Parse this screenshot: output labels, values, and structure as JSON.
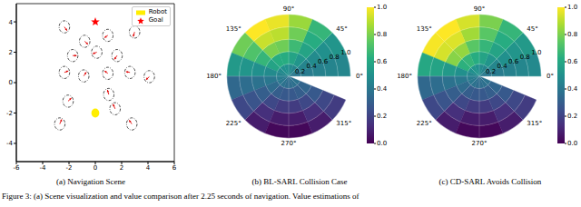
{
  "chart_data": [
    {
      "type": "scatter",
      "title": "(a) Navigation Scene",
      "xlim": [
        -6,
        6
      ],
      "xticks": [
        -6,
        -4,
        -2,
        0,
        2,
        4,
        6
      ],
      "ylim": [
        -5.2,
        5.2
      ],
      "yticks": [
        -4,
        -2,
        0,
        2,
        4
      ],
      "legend": "upper right",
      "series": [
        {
          "name": "Robot",
          "color": "#ffee00",
          "marker": "circle",
          "x": [
            0
          ],
          "y": [
            -2
          ],
          "radius": [
            0.3
          ]
        },
        {
          "name": "Goal",
          "color": "#ff0000",
          "marker": "star",
          "x": [
            0
          ],
          "y": [
            4
          ]
        },
        {
          "color": "#000000",
          "marker": "ring",
          "line_style": "dashdot",
          "x": [
            -2.35,
            0.95,
            2.98,
            -0.81,
            -1.72,
            0.11,
            1.65,
            -2.35,
            -0.88,
            0.95,
            2.63,
            4.1,
            1.02,
            -2.07,
            -2.7,
            2.77,
            1.5
          ],
          "y": [
            3.67,
            3.11,
            3.33,
            2.72,
            1.78,
            2.0,
            1.78,
            0.67,
            0.44,
            0.61,
            0.67,
            0.39,
            -0.78,
            -1.22,
            -2.72,
            -2.72,
            -1.72
          ],
          "radius": [
            0.4,
            0.4,
            0.4,
            0.4,
            0.4,
            0.4,
            0.4,
            0.4,
            0.4,
            0.4,
            0.4,
            0.4,
            0.4,
            0.4,
            0.4,
            0.4,
            0.4
          ],
          "vx": [
            0.2,
            -0.25,
            -0.1,
            0.25,
            0.3,
            -0.3,
            -0.2,
            0.3,
            0.2,
            -0.25,
            -0.3,
            -0.25,
            -0.1,
            0.25,
            0.15,
            -0.2,
            -0.15
          ],
          "vy": [
            -0.25,
            -0.15,
            -0.3,
            -0.2,
            0.0,
            -0.1,
            -0.25,
            0.1,
            0.25,
            0.15,
            0.05,
            -0.2,
            0.3,
            0.2,
            0.3,
            0.25,
            0.3
          ]
        }
      ]
    },
    {
      "type": "polar_heatmap",
      "title": "(b) BL-SARL Collision Case",
      "theta_bins": [
        0,
        22.5,
        45,
        67.5,
        90,
        112.5,
        135,
        157.5,
        180,
        202.5,
        225,
        247.5,
        270,
        292.5,
        315,
        337.5
      ],
      "r_bins": [
        0,
        0.2,
        0.4,
        0.6,
        0.8,
        1
      ],
      "rlim": [
        0,
        1
      ],
      "rticks": [
        0.2,
        0.4,
        0.6,
        0.8,
        {
          "value": 1,
          "label": "1.0"
        }
      ],
      "thetaticks": [
        {
          "value": 0,
          "label": "0°"
        },
        {
          "value": 45,
          "label": "45°"
        },
        {
          "value": 90,
          "label": "90°"
        },
        {
          "value": 135,
          "label": "135°"
        },
        {
          "value": 180,
          "label": "180°"
        },
        {
          "value": 225,
          "label": "225°"
        },
        {
          "value": 270,
          "label": "270°"
        },
        {
          "value": 315,
          "label": "315°"
        }
      ],
      "values": [
        [
          0.4,
          0.42,
          0.45,
          0.48,
          0.5,
          0.5,
          0.48,
          0.45,
          0.42,
          0.4,
          0.38,
          0.36,
          0.36,
          0.37,
          0.38
        ],
        [
          0.42,
          0.45,
          0.52,
          0.58,
          0.62,
          0.62,
          0.58,
          0.48,
          0.4,
          0.35,
          0.3,
          0.28,
          0.28,
          0.3,
          0.33
        ],
        [
          0.44,
          0.48,
          0.58,
          0.68,
          0.78,
          0.8,
          0.66,
          0.5,
          0.38,
          0.3,
          0.22,
          0.18,
          0.18,
          0.22,
          0.28
        ],
        [
          0.45,
          0.5,
          0.62,
          0.78,
          0.9,
          0.92,
          0.72,
          0.52,
          0.36,
          0.26,
          0.14,
          0.08,
          0.08,
          0.14,
          0.22
        ],
        [
          0.46,
          0.52,
          0.66,
          0.85,
          0.97,
          1.0,
          0.78,
          0.54,
          0.34,
          0.22,
          0.08,
          0.02,
          0.02,
          0.08,
          0.18
        ]
      ],
      "colorbar_lim": [
        0,
        1
      ],
      "colorbar_ticks": [
        {
          "value": 0,
          "label": "0.0"
        },
        0.2,
        0.4,
        0.6,
        0.8,
        {
          "value": 1,
          "label": "1.0"
        }
      ]
    },
    {
      "type": "polar_heatmap",
      "title": "(c) CD-SARL Avoids Collision",
      "theta_bins": [
        0,
        22.5,
        45,
        67.5,
        90,
        112.5,
        135,
        157.5,
        180,
        202.5,
        225,
        247.5,
        270,
        292.5,
        315,
        337.5
      ],
      "r_bins": [
        0,
        0.2,
        0.4,
        0.6,
        0.8,
        1
      ],
      "rlim": [
        0,
        1
      ],
      "rticks": [
        0.2,
        0.4,
        0.6,
        0.8,
        {
          "value": 1,
          "label": "1.0"
        }
      ],
      "thetaticks": [
        {
          "value": 0,
          "label": "0°"
        },
        {
          "value": 45,
          "label": "45°"
        },
        {
          "value": 90,
          "label": "90°"
        },
        {
          "value": 135,
          "label": "135°"
        },
        {
          "value": 180,
          "label": "180°"
        },
        {
          "value": 225,
          "label": "225°"
        },
        {
          "value": 270,
          "label": "270°"
        },
        {
          "value": 315,
          "label": "315°"
        }
      ],
      "values": [
        [
          0.4,
          0.42,
          0.45,
          0.48,
          0.5,
          0.52,
          0.5,
          0.46,
          0.42,
          0.4,
          0.38,
          0.36,
          0.36,
          0.37,
          0.38
        ],
        [
          0.42,
          0.46,
          0.52,
          0.58,
          0.62,
          0.66,
          0.64,
          0.5,
          0.4,
          0.35,
          0.3,
          0.28,
          0.28,
          0.3,
          0.33
        ],
        [
          0.44,
          0.5,
          0.58,
          0.66,
          0.74,
          0.84,
          0.82,
          0.54,
          0.38,
          0.3,
          0.22,
          0.18,
          0.18,
          0.22,
          0.28
        ],
        [
          0.46,
          0.52,
          0.62,
          0.74,
          0.86,
          0.95,
          0.94,
          0.58,
          0.36,
          0.26,
          0.14,
          0.08,
          0.08,
          0.14,
          0.22
        ],
        [
          0.47,
          0.54,
          0.66,
          0.8,
          0.94,
          1.0,
          0.99,
          0.6,
          0.34,
          0.22,
          0.08,
          0.02,
          0.02,
          0.08,
          0.18
        ]
      ],
      "colorbar_lim": [
        0,
        1
      ],
      "colorbar_ticks": [
        {
          "value": 0,
          "label": "0.0"
        },
        0.2,
        0.4,
        0.6,
        0.8,
        {
          "value": 1,
          "label": "1.0"
        }
      ]
    }
  ],
  "caption": "Figure 3: (a) Scene visualization and value comparison after 2.25 seconds of navigation. Value estimations of"
}
